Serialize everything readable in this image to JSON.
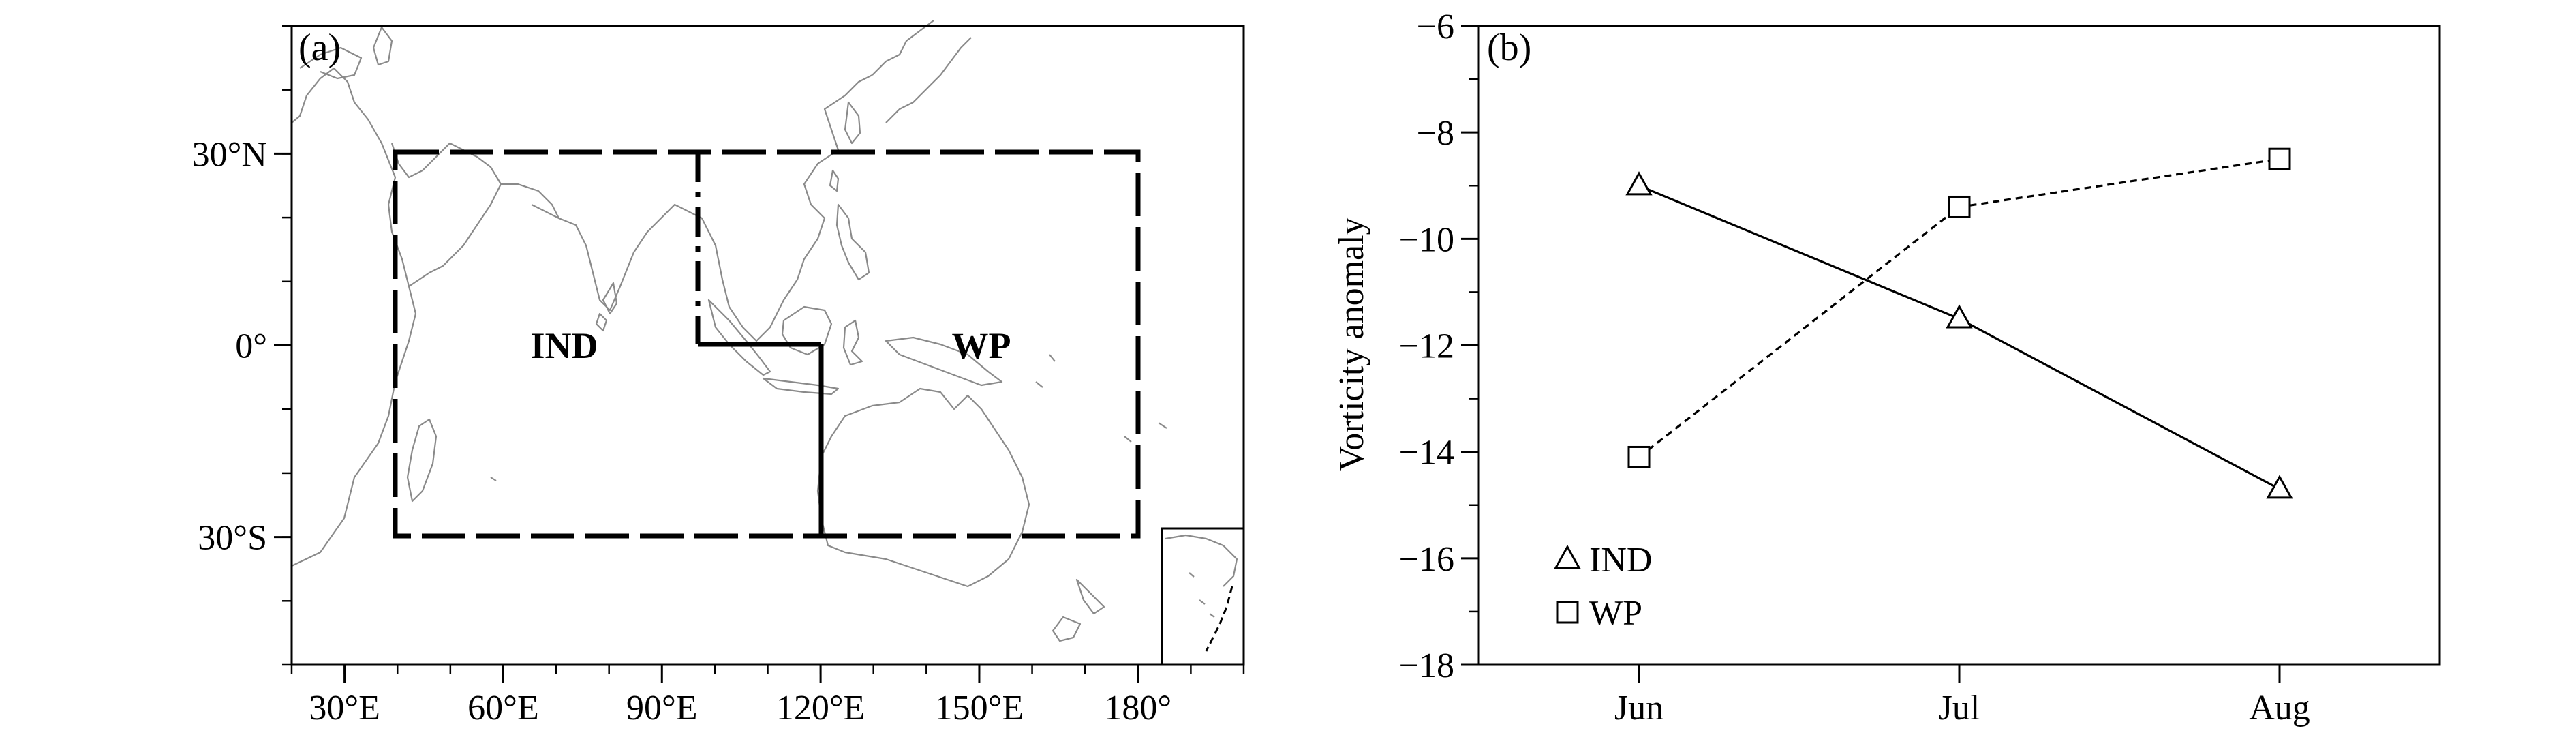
{
  "panel_a": {
    "label": "(a)",
    "x_ticks": [
      "30°E",
      "60°E",
      "90°E",
      "120°E",
      "150°E",
      "180°"
    ],
    "y_ticks": [
      "30°N",
      "0°",
      "30°S"
    ],
    "regions": [
      "IND",
      "WP"
    ]
  },
  "panel_b": {
    "label": "(b)"
  },
  "chart_data": [
    {
      "type": "map",
      "title": "",
      "lon_range": [
        20,
        200
      ],
      "lat_range": [
        -50,
        50
      ],
      "x_ticks": [
        30,
        60,
        90,
        120,
        150,
        180
      ],
      "y_ticks": [
        30,
        0,
        -30
      ],
      "regions": [
        {
          "name": "IND",
          "lon": [
            40,
            120
          ],
          "lat": [
            -30,
            30
          ],
          "notch": {
            "lon": [
              97,
              120
            ],
            "lat": [
              0,
              30
            ]
          }
        },
        {
          "name": "WP",
          "lon": [
            97,
            180
          ],
          "lat": [
            -30,
            30
          ]
        }
      ]
    },
    {
      "type": "line",
      "title": "",
      "categories": [
        "Jun",
        "Jul",
        "Aug"
      ],
      "ylabel": "Vorticity anomaly",
      "xlabel": "",
      "ylim": [
        -18,
        -6
      ],
      "y_ticks": [
        -6,
        -8,
        -10,
        -12,
        -14,
        -16,
        -18
      ],
      "y_tick_labels": [
        "−6",
        "−8",
        "−10",
        "−12",
        "−14",
        "−16",
        "−18"
      ],
      "grid": false,
      "legend": "bottom-left",
      "series": [
        {
          "name": "IND",
          "marker": "triangle",
          "line": "solid",
          "values": [
            -9.0,
            -11.5,
            -14.7
          ]
        },
        {
          "name": "WP",
          "marker": "square",
          "line": "dashed",
          "values": [
            -14.1,
            -9.4,
            -8.5
          ]
        }
      ]
    }
  ]
}
